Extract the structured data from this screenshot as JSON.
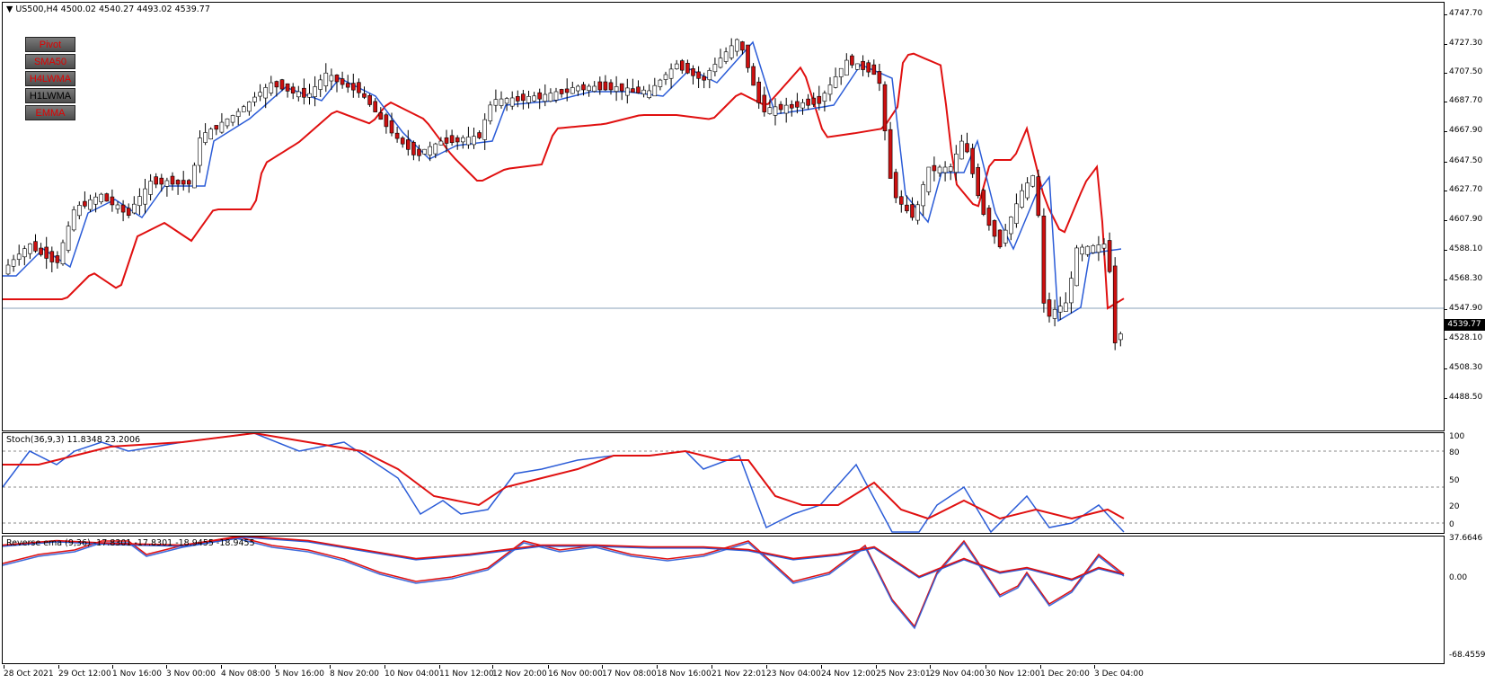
{
  "main": {
    "title": "US500,H4  4500.02 4540.27 4493.02 4539.77",
    "current_price": "4539.77",
    "price_ticks": [
      "4747.70",
      "4727.30",
      "4707.50",
      "4687.70",
      "4667.90",
      "4647.50",
      "4627.70",
      "4607.90",
      "4588.10",
      "4568.30",
      "4547.90",
      "4528.10",
      "4508.30",
      "4488.50"
    ],
    "buttons": [
      {
        "label": "Pivot",
        "color": "#e00000"
      },
      {
        "label": "SMA50",
        "color": "#e00000"
      },
      {
        "label": "H4LWMA",
        "color": "#e00000"
      },
      {
        "label": "H1LWMA",
        "color": "#000000"
      },
      {
        "label": "EMMA",
        "color": "#e00000"
      }
    ],
    "colors": {
      "bull": "#ffffff",
      "bear": "#cc1010",
      "fast_ma": "#2a5bd7",
      "slow_ma": "#e01010",
      "hline": "#8aa0b8"
    }
  },
  "stoch": {
    "title": "Stoch(36,9,3) 11.8348 23.2006",
    "ticks": [
      "100",
      "80",
      "50",
      "20",
      "0"
    ]
  },
  "reverse": {
    "title": "Reverse ema (9,36) -17.8301 -17.8301 -18.9455 -18.9455",
    "ticks": [
      "37.6646",
      "0.00",
      "-68.4559"
    ]
  },
  "time_labels": [
    "28 Oct 2021",
    "29 Oct 12:00",
    "1 Nov 16:00",
    "3 Nov 00:00",
    "4 Nov 08:00",
    "5 Nov 16:00",
    "8 Nov 20:00",
    "10 Nov 04:00",
    "11 Nov 12:00",
    "12 Nov 20:00",
    "16 Nov 00:00",
    "17 Nov 08:00",
    "18 Nov 16:00",
    "21 Nov 22:01",
    "23 Nov 04:00",
    "24 Nov 12:00",
    "25 Nov 23:01",
    "29 Nov 04:00",
    "30 Nov 12:00",
    "1 Dec 20:00",
    "3 Dec 04:00"
  ]
}
